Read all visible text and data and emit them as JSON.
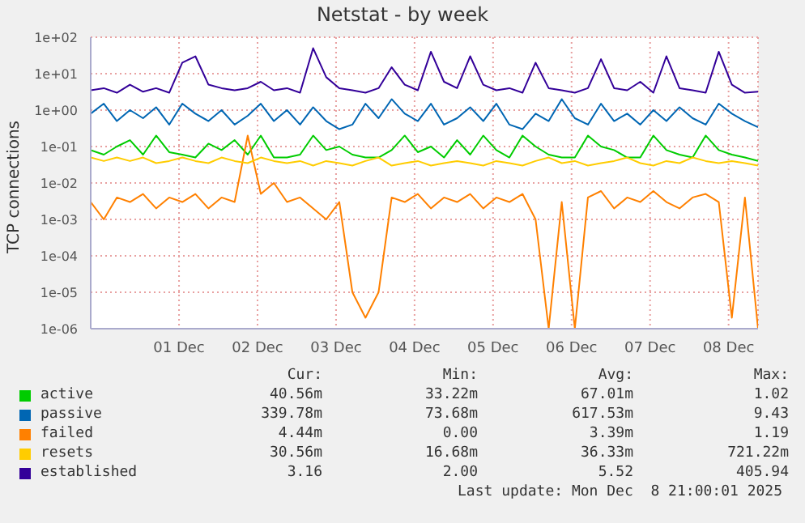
{
  "chart_data": {
    "type": "line",
    "title": "Netstat - by week",
    "ylabel": "TCP connections",
    "log": "y",
    "grid": true,
    "legend": "bottom",
    "x": [
      "2025-11-30T09:00",
      "2025-11-30T13:00",
      "2025-11-30T17:00",
      "2025-11-30T21:00",
      "2025-12-01T01:00",
      "2025-12-01T05:00",
      "2025-12-01T09:00",
      "2025-12-01T13:00",
      "2025-12-01T17:00",
      "2025-12-01T21:00",
      "2025-12-02T01:00",
      "2025-12-02T05:00",
      "2025-12-02T09:00",
      "2025-12-02T13:00",
      "2025-12-02T17:00",
      "2025-12-02T21:00",
      "2025-12-03T01:00",
      "2025-12-03T05:00",
      "2025-12-03T09:00",
      "2025-12-03T13:00",
      "2025-12-03T17:00",
      "2025-12-03T21:00",
      "2025-12-04T01:00",
      "2025-12-04T05:00",
      "2025-12-04T09:00",
      "2025-12-04T13:00",
      "2025-12-04T17:00",
      "2025-12-04T21:00",
      "2025-12-05T01:00",
      "2025-12-05T05:00",
      "2025-12-05T09:00",
      "2025-12-05T13:00",
      "2025-12-05T17:00",
      "2025-12-05T21:00",
      "2025-12-06T01:00",
      "2025-12-06T05:00",
      "2025-12-06T09:00",
      "2025-12-06T13:00",
      "2025-12-06T17:00",
      "2025-12-06T21:00",
      "2025-12-07T01:00",
      "2025-12-07T05:00",
      "2025-12-07T09:00",
      "2025-12-07T13:00",
      "2025-12-07T17:00",
      "2025-12-07T21:00",
      "2025-12-08T01:00",
      "2025-12-08T05:00",
      "2025-12-08T09:00",
      "2025-12-08T13:00",
      "2025-12-08T17:00",
      "2025-12-08T21:00"
    ],
    "xlim": [
      "2025-11-30T09:00",
      "2025-12-08T21:00"
    ],
    "xticks": [
      {
        "value": "2025-12-01T12:00",
        "label": "01 Dec"
      },
      {
        "value": "2025-12-02T12:00",
        "label": "02 Dec"
      },
      {
        "value": "2025-12-03T12:00",
        "label": "03 Dec"
      },
      {
        "value": "2025-12-04T12:00",
        "label": "04 Dec"
      },
      {
        "value": "2025-12-05T12:00",
        "label": "05 Dec"
      },
      {
        "value": "2025-12-06T12:00",
        "label": "06 Dec"
      },
      {
        "value": "2025-12-07T12:00",
        "label": "07 Dec"
      },
      {
        "value": "2025-12-08T12:00",
        "label": "08 Dec"
      }
    ],
    "ylim": [
      1e-06,
      100
    ],
    "yticks": [
      {
        "value": 1e-06,
        "label": "1e-06"
      },
      {
        "value": 1e-05,
        "label": "1e-05"
      },
      {
        "value": 0.0001,
        "label": "1e-04"
      },
      {
        "value": 0.001,
        "label": "1e-03"
      },
      {
        "value": 0.01,
        "label": "1e-02"
      },
      {
        "value": 0.1,
        "label": "1e-01"
      },
      {
        "value": 1,
        "label": "1e+00"
      },
      {
        "value": 10,
        "label": "1e+01"
      },
      {
        "value": 100,
        "label": "1e+02"
      }
    ],
    "series": [
      {
        "name": "active",
        "color": "#00cc00",
        "values": [
          0.08,
          0.06,
          0.1,
          0.15,
          0.06,
          0.2,
          0.07,
          0.06,
          0.05,
          0.12,
          0.08,
          0.15,
          0.06,
          0.2,
          0.05,
          0.05,
          0.06,
          0.2,
          0.08,
          0.1,
          0.06,
          0.05,
          0.05,
          0.08,
          0.2,
          0.07,
          0.1,
          0.05,
          0.15,
          0.06,
          0.2,
          0.08,
          0.05,
          0.2,
          0.1,
          0.06,
          0.05,
          0.05,
          0.2,
          0.1,
          0.08,
          0.05,
          0.05,
          0.2,
          0.08,
          0.06,
          0.05,
          0.2,
          0.08,
          0.06,
          0.05,
          0.04
        ]
      },
      {
        "name": "passive",
        "color": "#0066b3",
        "values": [
          0.8,
          1.5,
          0.5,
          1,
          0.6,
          1.2,
          0.4,
          1.5,
          0.8,
          0.5,
          1,
          0.4,
          0.7,
          1.5,
          0.5,
          1,
          0.4,
          1.2,
          0.5,
          0.3,
          0.4,
          1.5,
          0.6,
          2,
          0.8,
          0.5,
          1.5,
          0.4,
          0.6,
          1.2,
          0.5,
          1.5,
          0.4,
          0.3,
          0.8,
          0.5,
          2,
          0.6,
          0.4,
          1.5,
          0.5,
          0.8,
          0.4,
          1,
          0.5,
          1.2,
          0.6,
          0.4,
          1.5,
          0.8,
          0.5,
          0.34
        ]
      },
      {
        "name": "failed",
        "color": "#ff8000",
        "values": [
          0.003,
          0.001,
          0.004,
          0.003,
          0.005,
          0.002,
          0.004,
          0.003,
          0.005,
          0.002,
          0.004,
          0.003,
          0.2,
          0.005,
          0.01,
          0.003,
          0.004,
          0.002,
          0.001,
          0.003,
          1e-05,
          2e-06,
          1e-05,
          0.004,
          0.003,
          0.005,
          0.002,
          0.004,
          0.003,
          0.005,
          0.002,
          0.004,
          0.003,
          0.005,
          0.001,
          1e-06,
          0.003,
          1e-06,
          0.004,
          0.006,
          0.002,
          0.004,
          0.003,
          0.006,
          0.003,
          0.002,
          0.004,
          0.005,
          0.003,
          2e-06,
          0.004,
          1e-06
        ]
      },
      {
        "name": "resets",
        "color": "#ffcc00",
        "values": [
          0.05,
          0.04,
          0.05,
          0.04,
          0.05,
          0.035,
          0.04,
          0.05,
          0.04,
          0.035,
          0.05,
          0.04,
          0.035,
          0.05,
          0.04,
          0.035,
          0.04,
          0.03,
          0.04,
          0.035,
          0.03,
          0.04,
          0.05,
          0.03,
          0.035,
          0.04,
          0.03,
          0.035,
          0.04,
          0.035,
          0.03,
          0.04,
          0.035,
          0.03,
          0.04,
          0.05,
          0.035,
          0.04,
          0.03,
          0.035,
          0.04,
          0.05,
          0.035,
          0.03,
          0.04,
          0.035,
          0.05,
          0.04,
          0.035,
          0.04,
          0.035,
          0.03
        ]
      },
      {
        "name": "established",
        "color": "#330099",
        "values": [
          3.5,
          4,
          3,
          5,
          3.2,
          4,
          3,
          20,
          30,
          5,
          4,
          3.5,
          4,
          6,
          3.5,
          4,
          3,
          50,
          8,
          4,
          3.5,
          3,
          4,
          15,
          5,
          3.5,
          40,
          6,
          4,
          30,
          5,
          3.5,
          4,
          3,
          20,
          4,
          3.5,
          3,
          4,
          25,
          4,
          3.5,
          6,
          3,
          30,
          4,
          3.5,
          3,
          40,
          5,
          3,
          3.2
        ]
      }
    ],
    "annotations": [
      "Cur:",
      "Min:",
      "Avg:",
      "Max:",
      "40.56m",
      "33.22m",
      "67.01m",
      "1.02",
      "339.78m",
      "73.68m",
      "617.53m",
      "9.43",
      "4.44m",
      "0.00",
      "3.39m",
      "1.19",
      "30.56m",
      "16.68m",
      "36.33m",
      "721.22m",
      "3.16",
      "2.00",
      "5.52",
      "405.94",
      "Last update: Mon Dec  8 21:00:01 2025"
    ]
  }
}
